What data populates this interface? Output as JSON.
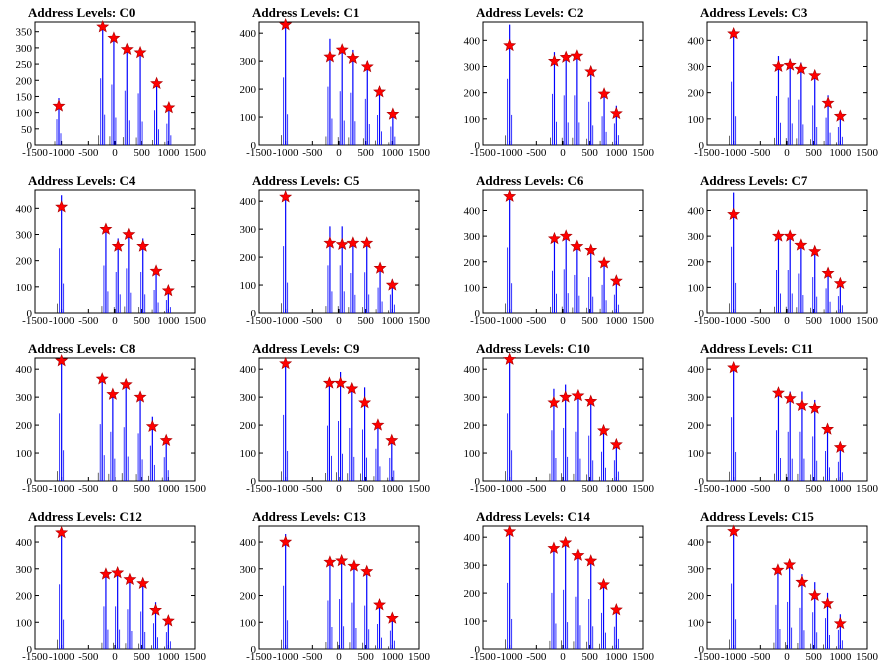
{
  "colors": {
    "bar": "#0000ff",
    "star_fill": "#ff0000",
    "star_edge": "#aa0000",
    "axis": "#000000"
  },
  "charts": [
    {
      "title": "Address Levels: C0",
      "ylim": [
        0,
        380
      ],
      "yticks": [
        0,
        50,
        100,
        150,
        200,
        250,
        300,
        350
      ],
      "peaks": [
        [
          -1050,
          120,
          145
        ],
        [
          -230,
          365,
          375
        ],
        [
          -20,
          330,
          340
        ],
        [
          230,
          295,
          305
        ],
        [
          470,
          285,
          290
        ],
        [
          780,
          190,
          195
        ],
        [
          1010,
          115,
          120
        ]
      ]
    },
    {
      "title": "Address Levels: C1",
      "ylim": [
        0,
        440
      ],
      "yticks": [
        0,
        100,
        200,
        300,
        400
      ],
      "peaks": [
        [
          -1000,
          430,
          440
        ],
        [
          -170,
          315,
          380
        ],
        [
          60,
          340,
          350
        ],
        [
          260,
          310,
          340
        ],
        [
          530,
          280,
          300
        ],
        [
          760,
          190,
          195
        ],
        [
          1010,
          110,
          120
        ]
      ]
    },
    {
      "title": "Address Levels: C2",
      "ylim": [
        0,
        470
      ],
      "yticks": [
        0,
        100,
        200,
        300,
        400
      ],
      "peaks": [
        [
          -1000,
          380,
          460
        ],
        [
          -160,
          320,
          355
        ],
        [
          60,
          335,
          345
        ],
        [
          260,
          340,
          345
        ],
        [
          520,
          280,
          300
        ],
        [
          770,
          195,
          200
        ],
        [
          1000,
          120,
          150
        ]
      ]
    },
    {
      "title": "Address Levels: C3",
      "ylim": [
        0,
        470
      ],
      "yticks": [
        0,
        100,
        200,
        300,
        400
      ],
      "peaks": [
        [
          -1000,
          425,
          440
        ],
        [
          -160,
          300,
          340
        ],
        [
          60,
          305,
          330
        ],
        [
          260,
          290,
          315
        ],
        [
          520,
          265,
          275
        ],
        [
          770,
          160,
          190
        ],
        [
          1000,
          110,
          125
        ]
      ]
    },
    {
      "title": "Address Levels: C4",
      "ylim": [
        0,
        470
      ],
      "yticks": [
        0,
        100,
        200,
        300,
        400
      ],
      "peaks": [
        [
          -1000,
          405,
          450
        ],
        [
          -170,
          320,
          330
        ],
        [
          60,
          255,
          285
        ],
        [
          260,
          300,
          310
        ],
        [
          520,
          255,
          285
        ],
        [
          770,
          160,
          160
        ],
        [
          1000,
          85,
          90
        ]
      ]
    },
    {
      "title": "Address Levels: C5",
      "ylim": [
        0,
        440
      ],
      "yticks": [
        0,
        100,
        200,
        300,
        400
      ],
      "peaks": [
        [
          -1000,
          415,
          435
        ],
        [
          -170,
          250,
          310
        ],
        [
          60,
          245,
          310
        ],
        [
          260,
          250,
          260
        ],
        [
          520,
          250,
          265
        ],
        [
          770,
          160,
          165
        ],
        [
          1000,
          100,
          120
        ]
      ]
    },
    {
      "title": "Address Levels: C6",
      "ylim": [
        0,
        480
      ],
      "yticks": [
        0,
        100,
        200,
        300,
        400
      ],
      "peaks": [
        [
          -1000,
          455,
          465
        ],
        [
          -160,
          290,
          300
        ],
        [
          60,
          300,
          310
        ],
        [
          260,
          260,
          270
        ],
        [
          520,
          245,
          255
        ],
        [
          770,
          195,
          200
        ],
        [
          1000,
          125,
          130
        ]
      ]
    },
    {
      "title": "Address Levels: C7",
      "ylim": [
        0,
        480
      ],
      "yticks": [
        0,
        100,
        200,
        300,
        400
      ],
      "peaks": [
        [
          -1000,
          385,
          470
        ],
        [
          -160,
          300,
          305
        ],
        [
          60,
          300,
          305
        ],
        [
          260,
          265,
          280
        ],
        [
          520,
          240,
          255
        ],
        [
          770,
          155,
          175
        ],
        [
          1000,
          115,
          120
        ]
      ]
    },
    {
      "title": "Address Levels: C8",
      "ylim": [
        0,
        440
      ],
      "yticks": [
        0,
        100,
        200,
        300,
        400
      ],
      "peaks": [
        [
          -1000,
          430,
          440
        ],
        [
          -240,
          365,
          370
        ],
        [
          -40,
          310,
          320
        ],
        [
          210,
          345,
          350
        ],
        [
          470,
          300,
          310
        ],
        [
          700,
          195,
          230
        ],
        [
          960,
          145,
          155
        ]
      ]
    },
    {
      "title": "Address Levels: C9",
      "ylim": [
        0,
        440
      ],
      "yticks": [
        0,
        100,
        200,
        300,
        400
      ],
      "peaks": [
        [
          -1000,
          420,
          430
        ],
        [
          -180,
          350,
          360
        ],
        [
          30,
          350,
          390
        ],
        [
          240,
          330,
          345
        ],
        [
          480,
          280,
          335
        ],
        [
          730,
          200,
          210
        ],
        [
          990,
          145,
          150
        ]
      ]
    },
    {
      "title": "Address Levels: C10",
      "ylim": [
        0,
        440
      ],
      "yticks": [
        0,
        100,
        200,
        300,
        400
      ],
      "peaks": [
        [
          -1000,
          435,
          440
        ],
        [
          -170,
          280,
          330
        ],
        [
          50,
          300,
          345
        ],
        [
          280,
          305,
          320
        ],
        [
          520,
          285,
          295
        ],
        [
          760,
          180,
          190
        ],
        [
          1000,
          130,
          135
        ]
      ]
    },
    {
      "title": "Address Levels: C11",
      "ylim": [
        0,
        440
      ],
      "yticks": [
        0,
        100,
        200,
        300,
        400
      ],
      "peaks": [
        [
          -1000,
          405,
          415
        ],
        [
          -160,
          315,
          330
        ],
        [
          60,
          295,
          320
        ],
        [
          280,
          270,
          320
        ],
        [
          520,
          260,
          290
        ],
        [
          760,
          185,
          195
        ],
        [
          1000,
          120,
          125
        ]
      ]
    },
    {
      "title": "Address Levels: C12",
      "ylim": [
        0,
        460
      ],
      "yticks": [
        0,
        100,
        200,
        300,
        400
      ],
      "peaks": [
        [
          -1000,
          435,
          440
        ],
        [
          -170,
          280,
          290
        ],
        [
          50,
          285,
          290
        ],
        [
          280,
          260,
          270
        ],
        [
          520,
          245,
          255
        ],
        [
          760,
          145,
          175
        ],
        [
          1000,
          105,
          115
        ]
      ]
    },
    {
      "title": "Address Levels: C13",
      "ylim": [
        0,
        460
      ],
      "yticks": [
        0,
        100,
        200,
        300,
        400
      ],
      "peaks": [
        [
          -1000,
          400,
          430
        ],
        [
          -170,
          325,
          330
        ],
        [
          50,
          330,
          340
        ],
        [
          280,
          310,
          315
        ],
        [
          520,
          290,
          295
        ],
        [
          760,
          165,
          170
        ],
        [
          1000,
          115,
          125
        ]
      ]
    },
    {
      "title": "Address Levels: C14",
      "ylim": [
        0,
        440
      ],
      "yticks": [
        0,
        100,
        200,
        300,
        400
      ],
      "peaks": [
        [
          -1000,
          420,
          430
        ],
        [
          -170,
          360,
          365
        ],
        [
          50,
          380,
          385
        ],
        [
          280,
          335,
          340
        ],
        [
          520,
          315,
          325
        ],
        [
          760,
          230,
          235
        ],
        [
          1000,
          140,
          145
        ]
      ]
    },
    {
      "title": "Address Levels: C15",
      "ylim": [
        0,
        460
      ],
      "yticks": [
        0,
        100,
        200,
        300,
        400
      ],
      "peaks": [
        [
          -1000,
          440,
          445
        ],
        [
          -170,
          295,
          300
        ],
        [
          50,
          315,
          320
        ],
        [
          280,
          250,
          280
        ],
        [
          520,
          200,
          250
        ],
        [
          760,
          170,
          210
        ],
        [
          1000,
          95,
          130
        ]
      ]
    }
  ],
  "chart_data": {
    "type": "bar",
    "description_kind": "histogram-grid",
    "xlim": [
      -1500,
      1500
    ],
    "xticks": [
      -1500,
      -1000,
      -500,
      0,
      500,
      1000,
      1500
    ],
    "panel_titles": [
      "Address Levels: C0",
      "Address Levels: C1",
      "Address Levels: C2",
      "Address Levels: C3",
      "Address Levels: C4",
      "Address Levels: C5",
      "Address Levels: C6",
      "Address Levels: C7",
      "Address Levels: C8",
      "Address Levels: C9",
      "Address Levels: C10",
      "Address Levels: C11",
      "Address Levels: C12",
      "Address Levels: C13",
      "Address Levels: C14",
      "Address Levels: C15"
    ]
  }
}
